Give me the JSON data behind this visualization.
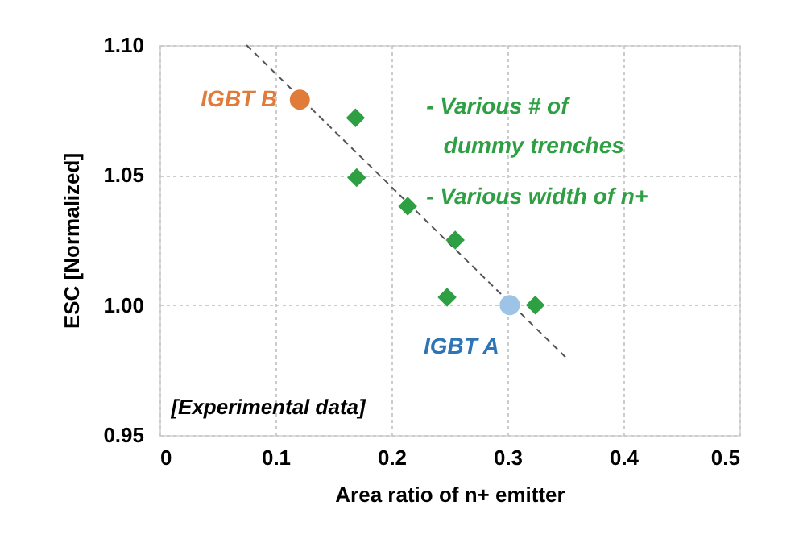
{
  "chart_data": {
    "type": "scatter",
    "xlabel": "Area ratio of n+ emitter",
    "ylabel": "ESC [Normalized]",
    "xlim": [
      0,
      0.5
    ],
    "xticks": [
      0,
      0.1,
      0.2,
      0.3,
      0.4,
      0.5
    ],
    "ylim": [
      0.95,
      1.1
    ],
    "yticks": [
      {
        "value": 0.95,
        "label": "0.95"
      },
      {
        "value": 1.0,
        "label": "1.00"
      },
      {
        "value": 1.05,
        "label": "1.05"
      },
      {
        "value": 1.1,
        "label": "1.10"
      }
    ],
    "grid": true,
    "series": [
      {
        "type": "line",
        "color": "#555555",
        "line_style": "dashed",
        "marker": "none",
        "x": [
          0.075,
          0.35
        ],
        "values": [
          1.1,
          0.98
        ]
      },
      {
        "color": "#2ea043",
        "marker": "diamond",
        "x": [
          0.169,
          0.17,
          0.214,
          0.255,
          0.248,
          0.324
        ],
        "values": [
          1.072,
          1.049,
          1.038,
          1.025,
          1.003,
          1.0
        ]
      },
      {
        "name": "IGBT B",
        "color": "#e07b39",
        "marker": "circle",
        "x": [
          0.121
        ],
        "values": [
          1.079
        ]
      },
      {
        "name": "IGBT A",
        "color": "#9dc3e6",
        "marker": "circle",
        "x": [
          0.302
        ],
        "values": [
          1.0
        ]
      }
    ],
    "annotations": [
      "- Various # of",
      "dummy trenches",
      "- Various width of n+",
      "[Experimental data]"
    ]
  }
}
